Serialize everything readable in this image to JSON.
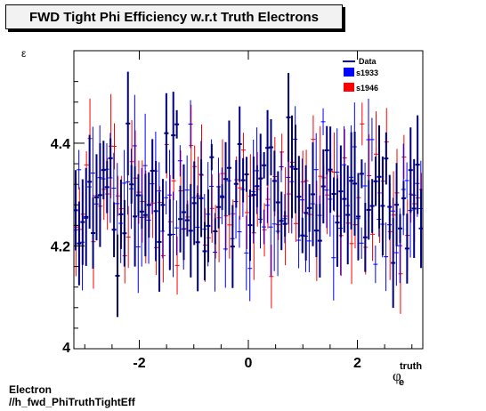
{
  "title": "FWD Tight Phi Efficiency w.r.t Truth Electrons",
  "caption": {
    "line1": "Electron",
    "line2": "//h_fwd_PhiTruthTightEff"
  },
  "chart_data": {
    "type": "scatter",
    "title": "FWD Tight Phi Efficiency w.r.t Truth Electrons",
    "ylabel": "ε",
    "xlabel": {
      "main": "φ",
      "sup": "truth",
      "sub": "e"
    },
    "xlim": [
      -3.2,
      3.2
    ],
    "ylim": [
      4.0,
      4.58
    ],
    "xticks": [
      -2,
      0,
      2
    ],
    "yticks": [
      4.2,
      4.4
    ],
    "ytick_extra": 4.0,
    "legend": {
      "position": "top-right",
      "entries": [
        "Data",
        "s1933",
        "s1946"
      ]
    },
    "colors": {
      "Data": "#000080",
      "s1933": "#0000ff",
      "s1946": "#ff0000",
      "axis": "#000000"
    },
    "seed": 1933,
    "n_bins": 100,
    "y_mean": 4.29,
    "y_spread": 0.12,
    "err_mean": 0.06
  }
}
